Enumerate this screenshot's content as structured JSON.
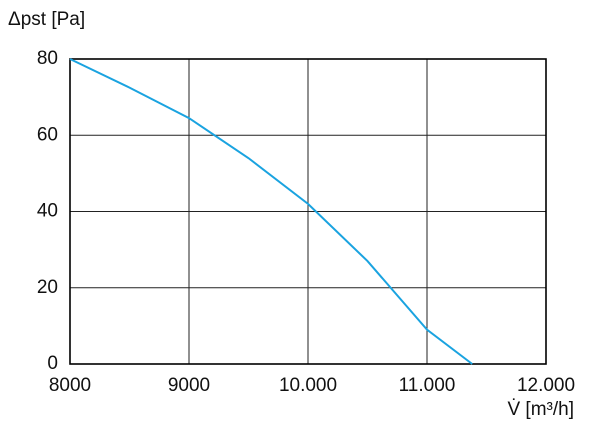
{
  "chart_data": {
    "type": "line",
    "y_label": "Δpst [Pa]",
    "x_label": "V̇ [m³/h]",
    "x": [
      8000,
      8500,
      9000,
      9500,
      10000,
      10500,
      11000,
      11380
    ],
    "series": [
      {
        "color": "#1aa3e0",
        "values": [
          80,
          72.5,
          64.5,
          54,
          42,
          27,
          9,
          0
        ]
      }
    ],
    "xlim": [
      8000,
      12000
    ],
    "xticks": [
      8000,
      9000,
      {
        "value": 10000,
        "label": "10.000"
      },
      {
        "value": 11000,
        "label": "11.000"
      },
      {
        "value": 12000,
        "label": "12.000"
      }
    ],
    "ylim": [
      0,
      80
    ],
    "yticks": [
      0,
      20,
      40,
      60,
      80
    ],
    "grid": true
  }
}
